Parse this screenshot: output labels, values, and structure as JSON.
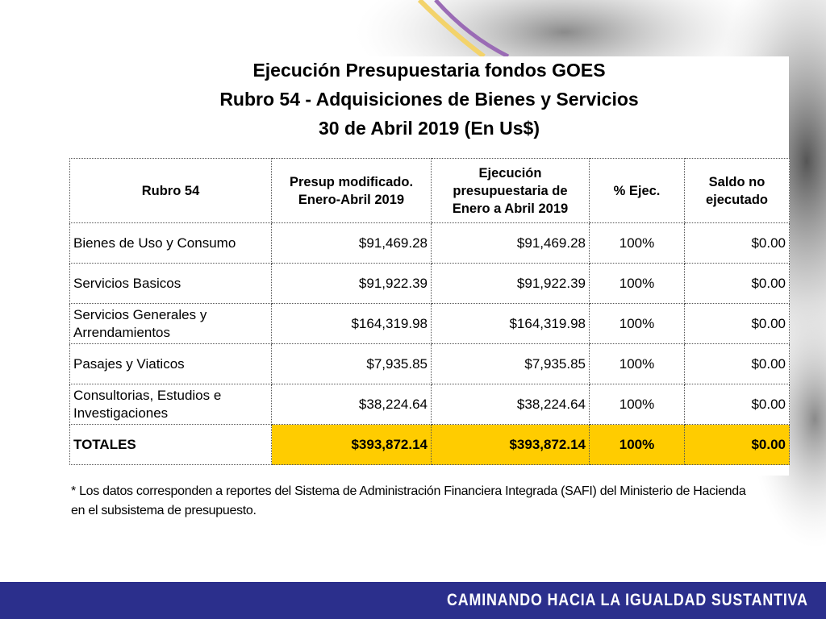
{
  "title": [
    "Ejecución Presupuestaria fondos GOES",
    "Rubro 54 - Adquisiciones de Bienes y Servicios",
    "30 de Abril 2019 (En Us$)"
  ],
  "table": {
    "header": [
      "Rubro 54",
      "Presup modificado. Enero-Abril 2019",
      "Ejecución presupuestaria de Enero a Abril 2019",
      "% Ejec.",
      "Saldo no ejecutado"
    ],
    "rows": [
      [
        "Bienes de Uso y Consumo",
        "$91,469.28",
        "$91,469.28",
        "100%",
        "$0.00"
      ],
      [
        "Servicios Basicos",
        "$91,922.39",
        "$91,922.39",
        "100%",
        "$0.00"
      ],
      [
        "Servicios Generales y Arrendamientos",
        "$164,319.98",
        "$164,319.98",
        "100%",
        "$0.00"
      ],
      [
        "Pasajes y Viaticos",
        "$7,935.85",
        "$7,935.85",
        "100%",
        "$0.00"
      ],
      [
        "Consultorias, Estudios e Investigaciones",
        "$38,224.64",
        "$38,224.64",
        "100%",
        "$0.00"
      ]
    ],
    "totals": [
      "TOTALES",
      "$393,872.14",
      "$393,872.14",
      "100%",
      "$0.00"
    ]
  },
  "footnote": "*  Los datos corresponden a reportes del Sistema de Administración Financiera Integrada (SAFI) del Ministerio de Hacienda en el subsistema de presupuesto.",
  "footer": "CAMINANDO HACIA LA IGUALDAD SUSTANTIVA"
}
